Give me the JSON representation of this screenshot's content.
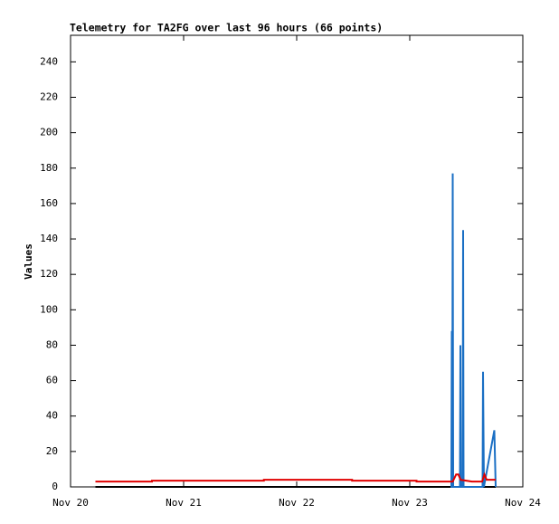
{
  "chart_data": {
    "type": "line",
    "title": "Telemetry for TA2FG over last 96 hours (66 points)",
    "y_label": "Values",
    "xlim": [
      20,
      24
    ],
    "xticks": [
      {
        "value": 20,
        "label": "Nov 20"
      },
      {
        "value": 21,
        "label": "Nov 21"
      },
      {
        "value": 22,
        "label": "Nov 22"
      },
      {
        "value": 23,
        "label": "Nov 23"
      },
      {
        "value": 24,
        "label": "Nov 24"
      }
    ],
    "ylim": [
      0,
      255
    ],
    "yticks": [
      0,
      20,
      40,
      60,
      80,
      100,
      120,
      140,
      160,
      180,
      200,
      220,
      240
    ],
    "series": [
      {
        "color": "#000000",
        "x": [
          20.22,
          23.76
        ],
        "values": [
          0,
          0
        ]
      },
      {
        "color": "#1a6fc4",
        "x": [
          23.36,
          23.368,
          23.372,
          23.376,
          23.38,
          23.384,
          23.444,
          23.448,
          23.452,
          23.468,
          23.472,
          23.476,
          23.644,
          23.648,
          23.656,
          23.748,
          23.76
        ],
        "values": [
          0,
          0,
          88,
          0,
          177,
          0,
          0,
          80,
          0,
          0,
          145,
          0,
          0,
          65,
          0,
          32,
          0
        ]
      },
      {
        "color": "#e00000",
        "x": [
          20.22,
          20.72,
          20.72,
          21.71,
          21.71,
          22.49,
          22.49,
          23.06,
          23.06,
          23.38,
          23.41,
          23.43,
          23.45,
          23.55,
          23.64,
          23.66,
          23.68,
          23.76
        ],
        "values": [
          3,
          3,
          3.5,
          3.5,
          4,
          4,
          3.5,
          3.5,
          3,
          3,
          7,
          7,
          4,
          3,
          3,
          7,
          4,
          4
        ]
      }
    ]
  }
}
